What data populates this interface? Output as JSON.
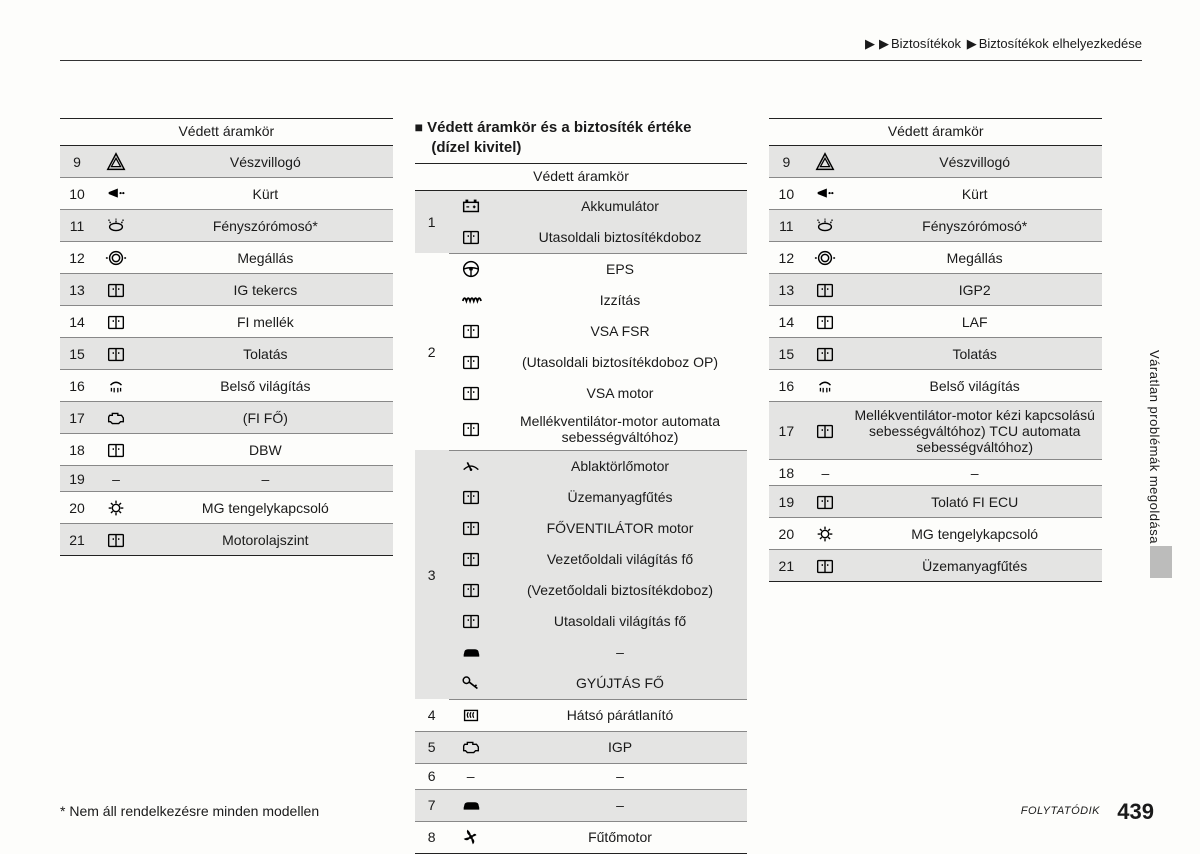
{
  "breadcrumb": {
    "part1": "Biztosítékok",
    "part2": "Biztosítékok elhelyezkedése"
  },
  "header_label": "Védett áramkör",
  "section_title_line1": "Védett áramkör és a biztosíték értéke",
  "section_title_line2": "(dízel kivitel)",
  "footnote": "* Nem áll rendelkezésre minden modellen",
  "continue": "FOLYTATÓDIK",
  "page_number": "439",
  "side_tab": "Váratlan problémák megoldása",
  "colors": {
    "shade": "#e4e4e3",
    "border": "#222222",
    "row_border": "#888888",
    "background": "#fdfdfb"
  },
  "table_left": [
    {
      "n": "9",
      "icon": "hazard",
      "label": "Vészvillogó",
      "shade": true
    },
    {
      "n": "10",
      "icon": "horn",
      "label": "Kürt",
      "shade": false
    },
    {
      "n": "11",
      "icon": "washer",
      "label": "Fényszórómosó*",
      "shade": true
    },
    {
      "n": "12",
      "icon": "stop",
      "label": "Megállás",
      "shade": false
    },
    {
      "n": "13",
      "icon": "book",
      "label": "IG tekercs",
      "shade": true
    },
    {
      "n": "14",
      "icon": "book",
      "label": "FI mellék",
      "shade": false
    },
    {
      "n": "15",
      "icon": "book",
      "label": "Tolatás",
      "shade": true
    },
    {
      "n": "16",
      "icon": "dome",
      "label": "Belső világítás",
      "shade": false
    },
    {
      "n": "17",
      "icon": "engine",
      "label": "(FI FŐ)",
      "shade": true
    },
    {
      "n": "18",
      "icon": "book",
      "label": "DBW",
      "shade": false
    },
    {
      "n": "19",
      "icon": "dash",
      "label": "–",
      "shade": true
    },
    {
      "n": "20",
      "icon": "gear",
      "label": "MG tengelykapcsoló",
      "shade": false
    },
    {
      "n": "21",
      "icon": "book",
      "label": "Motorolajszint",
      "shade": true
    }
  ],
  "table_middle": [
    {
      "n": "1",
      "rows": [
        {
          "icon": "battery",
          "label": "Akkumulátor"
        },
        {
          "icon": "book",
          "label": "Utasoldali biztosítékdoboz"
        }
      ],
      "shade": true
    },
    {
      "n": "2",
      "rows": [
        {
          "icon": "steer",
          "label": "EPS"
        },
        {
          "icon": "coil",
          "label": "Izzítás"
        },
        {
          "icon": "book",
          "label": "VSA FSR"
        },
        {
          "icon": "book",
          "label": "(Utasoldali biztosítékdoboz OP)"
        },
        {
          "icon": "book",
          "label": "VSA motor"
        },
        {
          "icon": "book",
          "label": "Mellékventilátor-motor automata sebességváltóhoz)"
        }
      ],
      "shade": false
    },
    {
      "n": "3",
      "rows": [
        {
          "icon": "wiper",
          "label": "Ablaktörlőmotor"
        },
        {
          "icon": "book",
          "label": "Üzemanyagfűtés"
        },
        {
          "icon": "book",
          "label": "FŐVENTILÁTOR motor"
        },
        {
          "icon": "book",
          "label": "Vezetőoldali világítás fő"
        },
        {
          "icon": "book",
          "label": "(Vezetőoldali biztosítékdoboz)"
        },
        {
          "icon": "book",
          "label": "Utasoldali világítás fő"
        },
        {
          "icon": "car",
          "label": "–"
        },
        {
          "icon": "key",
          "label": "GYÚJTÁS FŐ"
        }
      ],
      "shade": true
    },
    {
      "n": "4",
      "rows": [
        {
          "icon": "defrost",
          "label": "Hátsó párátlanító"
        }
      ],
      "shade": false
    },
    {
      "n": "5",
      "rows": [
        {
          "icon": "engine",
          "label": "IGP"
        }
      ],
      "shade": true
    },
    {
      "n": "6",
      "rows": [
        {
          "icon": "dash",
          "label": "–"
        }
      ],
      "shade": false
    },
    {
      "n": "7",
      "rows": [
        {
          "icon": "car",
          "label": "–"
        }
      ],
      "shade": true
    },
    {
      "n": "8",
      "rows": [
        {
          "icon": "fan",
          "label": "Fűtőmotor"
        }
      ],
      "shade": false
    }
  ],
  "table_right": [
    {
      "n": "9",
      "icon": "hazard",
      "label": "Vészvillogó",
      "shade": true
    },
    {
      "n": "10",
      "icon": "horn",
      "label": "Kürt",
      "shade": false
    },
    {
      "n": "11",
      "icon": "washer",
      "label": "Fényszórómosó*",
      "shade": true
    },
    {
      "n": "12",
      "icon": "stop",
      "label": "Megállás",
      "shade": false
    },
    {
      "n": "13",
      "icon": "book",
      "label": "IGP2",
      "shade": true
    },
    {
      "n": "14",
      "icon": "book",
      "label": "LAF",
      "shade": false
    },
    {
      "n": "15",
      "icon": "book",
      "label": "Tolatás",
      "shade": true
    },
    {
      "n": "16",
      "icon": "dome",
      "label": "Belső világítás",
      "shade": false
    },
    {
      "n": "17",
      "icon": "book",
      "label": "Mellékventilátor-motor kézi kapcsolású sebességváltóhoz) TCU automata sebességváltóhoz)",
      "shade": true
    },
    {
      "n": "18",
      "icon": "dash",
      "label": "–",
      "shade": false
    },
    {
      "n": "19",
      "icon": "book",
      "label": "Tolató FI ECU",
      "shade": true
    },
    {
      "n": "20",
      "icon": "gear",
      "label": "MG tengelykapcsoló",
      "shade": false
    },
    {
      "n": "21",
      "icon": "book",
      "label": "Üzemanyagfűtés",
      "shade": true
    }
  ]
}
